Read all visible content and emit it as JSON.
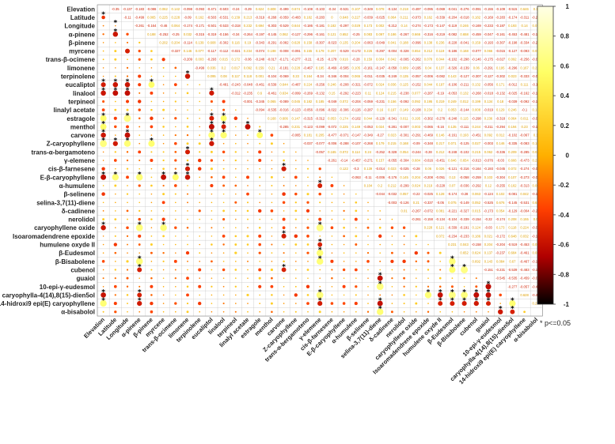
{
  "chart_data": {
    "type": "heatmap",
    "variables": [
      "Elevation",
      "Latitude",
      "Longitude",
      "α-pinene",
      "β-pinene",
      "myrcene",
      "trans-β-ocimene",
      "limonene",
      "terpinolene",
      "eucaliptol",
      "linalool",
      "terpineol",
      "linalyl acetate",
      "estragole",
      "menthol",
      "carvone",
      "Z-caryophyllene",
      "trans-α-bergamoteno",
      "γ-elemene",
      "cis-β-farnesene",
      "E-β-caryophyllene",
      "α-humulene",
      "β-selinene",
      "selina-3,7(11)-diene",
      "δ-cadinene",
      "nerolidol",
      "caryophyllene oxide",
      "Isoaromadendrene epoxide",
      "humulene oxyde II",
      "β-Eudesmol",
      "β-Bisabolene",
      "cubenol",
      "guaiol",
      "10-epi-γ-eudesmol",
      "caryophylla-4(14),8(15)-dien5ol",
      "14-hidroxi9 epi(E) caryophyllene",
      "α-bisabolol"
    ],
    "column_labels": [
      "Elevation",
      "Latitude",
      "Longitude",
      "α-pinene",
      "β-pinene",
      "myrcene",
      "trans-β-ocimene",
      "limonene",
      "terpinolene",
      "eucaliptol",
      "linalool",
      "terpineol",
      "linalyl acetate",
      "estragole",
      "menthol",
      "carvone",
      "Z-caryophyllene",
      "trans-α-bergamoteno",
      "γ-elemene",
      "cis-β-farnesene",
      "E-β-caryophyllene",
      "α-humulene",
      "β-selinene",
      "selina-3,7(11)-diene",
      "δ-cadinene",
      "nerolidol",
      "caryophyllene oxide",
      "Isoaromadendrene epoxide",
      "humulene oxyde II",
      "β-Eudesmol",
      "β-Bisabolene",
      "cubenol",
      "guaiol",
      "10-epi-γ-eudesmol",
      "caryophylla-4(14),8(15)-dien5ol",
      "14-hidroxi9 epi(E) caryophyllene",
      "α-bisabolol"
    ],
    "significant_pairs": [
      [
        1,
        0
      ],
      [
        2,
        1
      ],
      [
        3,
        1
      ],
      [
        8,
        7
      ],
      [
        9,
        0
      ],
      [
        9,
        1
      ],
      [
        9,
        2
      ],
      [
        9,
        4
      ],
      [
        10,
        0
      ],
      [
        10,
        1
      ],
      [
        10,
        2
      ],
      [
        10,
        9
      ],
      [
        13,
        0
      ],
      [
        13,
        2
      ],
      [
        13,
        9
      ],
      [
        13,
        10
      ],
      [
        14,
        0
      ],
      [
        14,
        9
      ],
      [
        14,
        10
      ],
      [
        14,
        12
      ],
      [
        14,
        14
      ],
      [
        15,
        0
      ],
      [
        15,
        2
      ],
      [
        15,
        9
      ],
      [
        15,
        10
      ],
      [
        15,
        13
      ],
      [
        16,
        0
      ],
      [
        16,
        1
      ],
      [
        16,
        2
      ],
      [
        16,
        4
      ],
      [
        16,
        9
      ],
      [
        17,
        7
      ],
      [
        19,
        7
      ],
      [
        19,
        15
      ],
      [
        20,
        0
      ],
      [
        20,
        1
      ],
      [
        20,
        3
      ],
      [
        20,
        5
      ],
      [
        20,
        6
      ],
      [
        20,
        7
      ],
      [
        21,
        18
      ],
      [
        26,
        0
      ],
      [
        26,
        3
      ],
      [
        26,
        5
      ],
      [
        26,
        18
      ],
      [
        27,
        15
      ],
      [
        28,
        18
      ],
      [
        29,
        18
      ],
      [
        29,
        29
      ],
      [
        30,
        3
      ],
      [
        30,
        18
      ],
      [
        30,
        29
      ],
      [
        30,
        30
      ],
      [
        31,
        3
      ],
      [
        31,
        15
      ],
      [
        31,
        29
      ],
      [
        31,
        30
      ],
      [
        31,
        31
      ],
      [
        32,
        23
      ],
      [
        33,
        23
      ],
      [
        33,
        32
      ],
      [
        34,
        0
      ],
      [
        34,
        3
      ],
      [
        34,
        18
      ],
      [
        34,
        27
      ],
      [
        34,
        28
      ],
      [
        34,
        29
      ],
      [
        34,
        30
      ],
      [
        34,
        31
      ],
      [
        34,
        32
      ],
      [
        35,
        0
      ],
      [
        35,
        3
      ],
      [
        35,
        18
      ],
      [
        35,
        23
      ],
      [
        35,
        28
      ],
      [
        35,
        29
      ],
      [
        35,
        30
      ],
      [
        35,
        31
      ],
      [
        35,
        32
      ],
      [
        35,
        34
      ],
      [
        36,
        23
      ],
      [
        36,
        33
      ],
      [
        36,
        34
      ]
    ],
    "example_values": {
      "Elevation-Latitude": -0.35,
      "Latitude-Longitude": -0.11,
      "myrcene-Longitude": -0.46,
      "Elevation-α-bisabolol": 0.15
    },
    "colorbar": {
      "min": -1,
      "max": 1,
      "ticks": [
        1,
        0.8,
        0.6,
        0.4,
        0.2,
        0,
        -0.2,
        -0.4,
        -0.6,
        -0.8,
        -1
      ],
      "colors": [
        "#ffffcc",
        "#ffff66",
        "#ffcc00",
        "#ff6600",
        "#e60000",
        "#990000",
        "#000000"
      ]
    },
    "legend_note": "* p<=0.05",
    "title": "",
    "xlabel": "",
    "ylabel": ""
  }
}
